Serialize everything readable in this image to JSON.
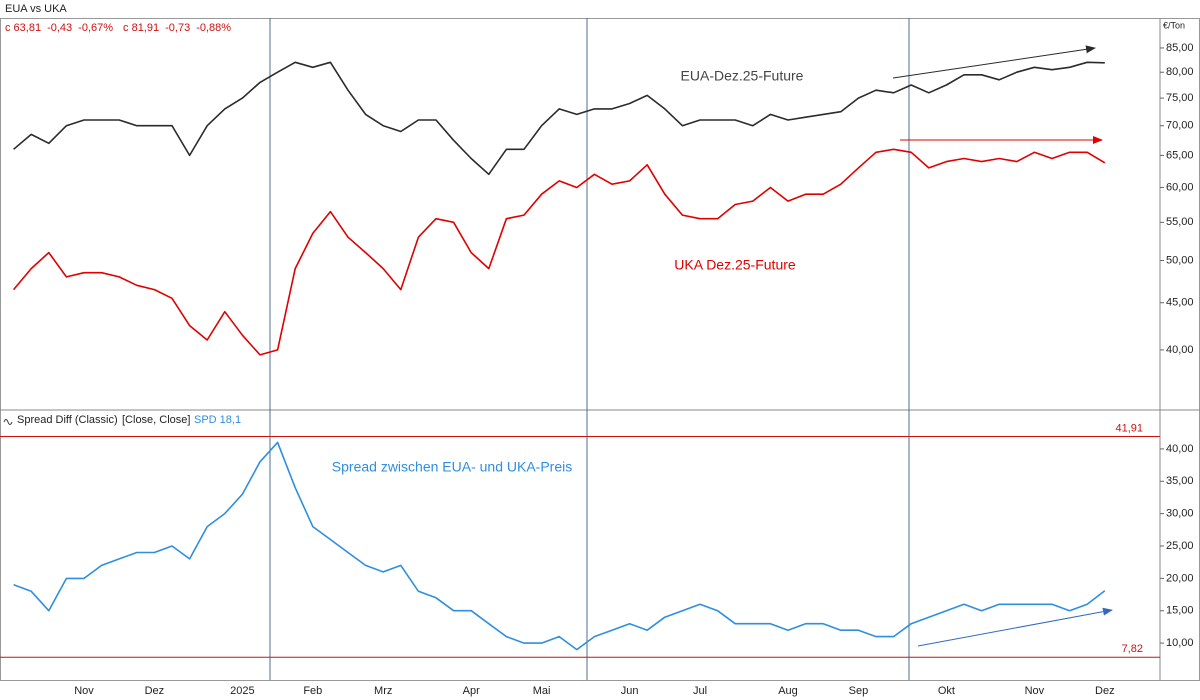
{
  "chart_data": [
    {
      "type": "line",
      "title": "EUA vs UKA",
      "unit": "€/Ton",
      "readout": [
        "c 63,81",
        "-0,43",
        "-0,67%",
        "c 81,91",
        "-0,73",
        "-0,88%"
      ],
      "log_scale": true,
      "ylim": [
        34.6,
        91.6
      ],
      "yticks": [
        {
          "value": 40,
          "label": "40,00"
        },
        {
          "value": 45,
          "label": "45,00"
        },
        {
          "value": 50,
          "label": "50,00"
        },
        {
          "value": 55,
          "label": "55,00"
        },
        {
          "value": 60,
          "label": "60,00"
        },
        {
          "value": 65,
          "label": "65,00"
        },
        {
          "value": 70,
          "label": "70,00"
        },
        {
          "value": 75,
          "label": "75,00"
        },
        {
          "value": 80,
          "label": "80,00"
        },
        {
          "value": 85,
          "label": "85,00"
        }
      ],
      "series": [
        {
          "name": "EUA-Dez.25-Future",
          "color": "#2b2b2b",
          "values": [
            66,
            68.5,
            67,
            70,
            71,
            71,
            71,
            70,
            70,
            70,
            65,
            70,
            73,
            75,
            78,
            80,
            82,
            81,
            82,
            76.5,
            72,
            70,
            69,
            71,
            71,
            67.5,
            64.5,
            62,
            66,
            66,
            70,
            73,
            72,
            73,
            73,
            74,
            75.5,
            73,
            70,
            71,
            71,
            71,
            70,
            72,
            71,
            71.5,
            72,
            72.5,
            75,
            76.5,
            76,
            77.5,
            76,
            77.5,
            79.5,
            79.5,
            78.5,
            80,
            81,
            80.5,
            81,
            82,
            81.91
          ]
        },
        {
          "name": "UKA Dez.25-Future",
          "color": "#e00000",
          "values": [
            46.5,
            49,
            51,
            48,
            48.5,
            48.5,
            48,
            47,
            46.5,
            45.5,
            42.5,
            41,
            44,
            41.5,
            39.5,
            40,
            49,
            53.5,
            56.5,
            53,
            51,
            49,
            46.5,
            53,
            55.5,
            55,
            51,
            49,
            55.5,
            56,
            59,
            61,
            60,
            62,
            60.5,
            61,
            63.5,
            59,
            56,
            55.5,
            55.5,
            57.5,
            58,
            60,
            58,
            59,
            59,
            60.5,
            63,
            65.5,
            66,
            65.5,
            63,
            64,
            64.5,
            64,
            64.5,
            64,
            65.5,
            64.5,
            65.5,
            65.5,
            63.81
          ]
        }
      ]
    },
    {
      "type": "line",
      "title": "Spread Diff (Classic)",
      "params": "[Close, Close]",
      "indicator_label": "SPD 18,1",
      "categories": [
        null,
        null,
        null,
        null,
        "Nov",
        null,
        null,
        null,
        "Dez",
        null,
        null,
        null,
        null,
        "2025",
        null,
        null,
        null,
        "Feb",
        null,
        null,
        null,
        "Mrz",
        null,
        null,
        null,
        null,
        "Apr",
        null,
        null,
        null,
        "Mai",
        null,
        null,
        null,
        null,
        "Jun",
        null,
        null,
        null,
        "Jul",
        null,
        null,
        null,
        null,
        "Aug",
        null,
        null,
        null,
        "Sep",
        null,
        null,
        null,
        null,
        "Okt",
        null,
        null,
        null,
        null,
        "Nov",
        null,
        null,
        null,
        "Dez"
      ],
      "ylim": [
        4.3,
        45.7
      ],
      "yticks": [
        {
          "value": 10,
          "label": "10,00"
        },
        {
          "value": 15,
          "label": "15,00"
        },
        {
          "value": 20,
          "label": "20,00"
        },
        {
          "value": 25,
          "label": "25,00"
        },
        {
          "value": 30,
          "label": "30,00"
        },
        {
          "value": 35,
          "label": "35,00"
        },
        {
          "value": 40,
          "label": "40,00"
        }
      ],
      "reference_lines": [
        {
          "value": 41.91,
          "label": "41,91"
        },
        {
          "value": 7.82,
          "label": "7,82"
        }
      ],
      "series": [
        {
          "name": "Spread zwischen EUA- und UKA-Preis",
          "color": "#2e8ee0",
          "values": [
            19,
            18,
            15,
            20,
            20,
            22,
            23,
            24,
            24,
            25,
            23,
            28,
            30,
            33,
            38,
            41,
            34,
            28,
            26,
            24,
            22,
            21,
            22,
            18,
            17,
            15,
            15,
            13,
            11,
            10,
            10,
            11,
            9,
            11,
            12,
            13,
            12,
            14,
            15,
            16,
            15,
            13,
            13,
            13,
            12,
            13,
            13,
            12,
            12,
            11,
            11,
            13,
            14,
            15,
            16,
            15,
            16,
            16,
            16,
            16,
            15,
            16,
            18.1
          ]
        }
      ]
    }
  ]
}
